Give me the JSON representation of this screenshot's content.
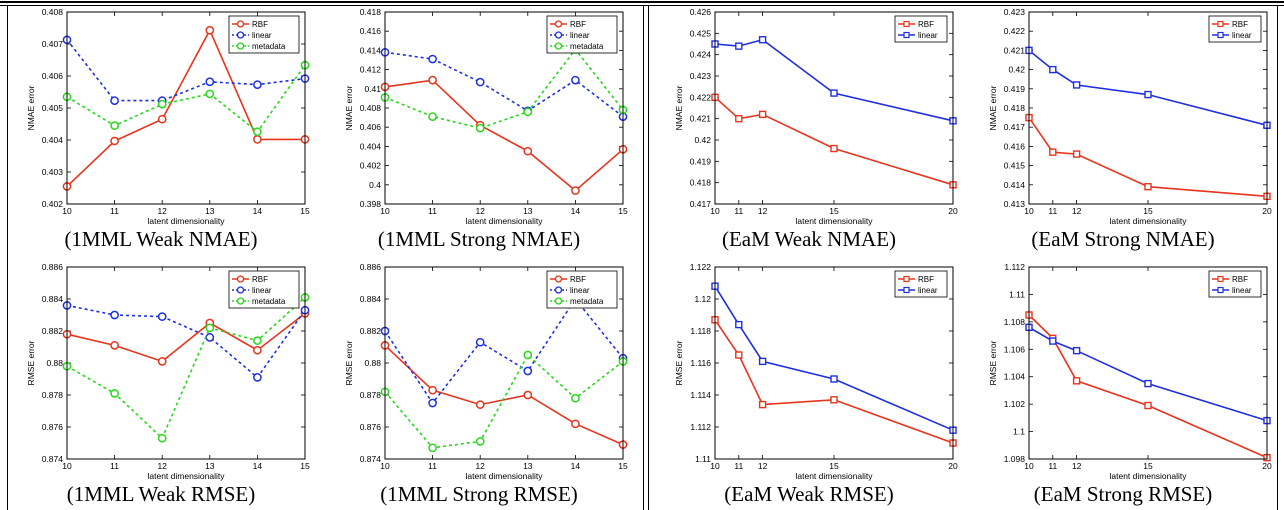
{
  "colors": {
    "rbf": "#e8341c",
    "linear": "#1f2fe0",
    "metadata": "#27d81a",
    "axis": "#000000"
  },
  "chart_data": [
    {
      "type": "line",
      "caption": "(1MML Weak NMAE)",
      "xlabel": "latent dimensionality",
      "ylabel": "NMAE error",
      "xlim": [
        10,
        15
      ],
      "ylim": [
        0.402,
        0.408
      ],
      "xticks": [
        10,
        11,
        12,
        13,
        14,
        15
      ],
      "yticks": [
        0.402,
        0.403,
        0.404,
        0.405,
        0.406,
        0.407,
        0.408
      ],
      "ytick_labels": [
        "0.402",
        "0.403",
        "0.404",
        "0.405",
        "0.406",
        "0.407",
        "0.408"
      ],
      "marker": "circle",
      "legend": "top-right",
      "x": [
        10,
        11,
        12,
        13,
        14,
        15
      ],
      "series": [
        {
          "name": "RBF",
          "color": "rbf",
          "dashed": false,
          "values": [
            0.40255,
            0.40397,
            0.40465,
            0.40743,
            0.40402,
            0.40402
          ]
        },
        {
          "name": "linear",
          "color": "linear",
          "dashed": true,
          "values": [
            0.40713,
            0.40523,
            0.40523,
            0.40582,
            0.40573,
            0.40592
          ]
        },
        {
          "name": "metadata",
          "color": "metadata",
          "dashed": true,
          "values": [
            0.40535,
            0.40445,
            0.40512,
            0.40544,
            0.40426,
            0.40634
          ]
        }
      ]
    },
    {
      "type": "line",
      "caption": "(1MML Strong NMAE)",
      "xlabel": "latent dimensionality",
      "ylabel": "NMAE error",
      "xlim": [
        10,
        15
      ],
      "ylim": [
        0.398,
        0.418
      ],
      "xticks": [
        10,
        11,
        12,
        13,
        14,
        15
      ],
      "yticks": [
        0.398,
        0.4,
        0.402,
        0.404,
        0.406,
        0.408,
        0.41,
        0.412,
        0.414,
        0.416,
        0.418
      ],
      "ytick_labels": [
        "0.398",
        "0.4",
        "0.402",
        "0.404",
        "0.406",
        "0.408",
        "0.41",
        "0.412",
        "0.414",
        "0.416",
        "0.418"
      ],
      "marker": "circle",
      "legend": "top-right",
      "x": [
        10,
        11,
        12,
        13,
        14,
        15
      ],
      "series": [
        {
          "name": "RBF",
          "color": "rbf",
          "dashed": false,
          "values": [
            0.4102,
            0.4109,
            0.4062,
            0.4035,
            0.3994,
            0.4037
          ]
        },
        {
          "name": "linear",
          "color": "linear",
          "dashed": true,
          "values": [
            0.4138,
            0.4131,
            0.4107,
            0.4077,
            0.4109,
            0.4071
          ]
        },
        {
          "name": "metadata",
          "color": "metadata",
          "dashed": true,
          "values": [
            0.4091,
            0.4071,
            0.4059,
            0.4076,
            0.4141,
            0.4078
          ]
        }
      ]
    },
    {
      "type": "line",
      "caption": "(EaM Weak NMAE)",
      "xlabel": "latent dimensionality",
      "ylabel": "NMAE error",
      "xlim": [
        10,
        20
      ],
      "ylim": [
        0.417,
        0.426
      ],
      "xticks": [
        10,
        11,
        12,
        15,
        20
      ],
      "yticks": [
        0.417,
        0.418,
        0.419,
        0.42,
        0.421,
        0.422,
        0.423,
        0.424,
        0.425,
        0.426
      ],
      "ytick_labels": [
        "0.417",
        "0.418",
        "0.419",
        "0.42",
        "0.421",
        "0.422",
        "0.423",
        "0.424",
        "0.425",
        "0.426"
      ],
      "marker": "square",
      "legend": "top-right",
      "x": [
        10,
        11,
        12,
        15,
        20
      ],
      "series": [
        {
          "name": "RBF",
          "color": "rbf",
          "dashed": false,
          "values": [
            0.422,
            0.421,
            0.4212,
            0.4196,
            0.4179
          ]
        },
        {
          "name": "linear",
          "color": "linear",
          "dashed": false,
          "values": [
            0.4245,
            0.4244,
            0.4247,
            0.4222,
            0.4209
          ]
        }
      ]
    },
    {
      "type": "line",
      "caption": "(EaM Strong NMAE)",
      "xlabel": "latent dimensionality",
      "ylabel": "NMAE error",
      "xlim": [
        10,
        20
      ],
      "ylim": [
        0.413,
        0.423
      ],
      "xticks": [
        10,
        11,
        12,
        15,
        20
      ],
      "yticks": [
        0.413,
        0.414,
        0.415,
        0.416,
        0.417,
        0.418,
        0.419,
        0.42,
        0.421,
        0.422,
        0.423
      ],
      "ytick_labels": [
        "0.413",
        "0.414",
        "0.415",
        "0.416",
        "0.417",
        "0.418",
        "0.419",
        "0.42",
        "0.421",
        "0.422",
        "0.423"
      ],
      "marker": "square",
      "legend": "top-right",
      "x": [
        10,
        11,
        12,
        15,
        20
      ],
      "series": [
        {
          "name": "RBF",
          "color": "rbf",
          "dashed": false,
          "values": [
            0.4175,
            0.4157,
            0.4156,
            0.4139,
            0.4134
          ]
        },
        {
          "name": "linear",
          "color": "linear",
          "dashed": false,
          "values": [
            0.421,
            0.42,
            0.4192,
            0.4187,
            0.4171
          ]
        }
      ]
    },
    {
      "type": "line",
      "caption": "(1MML Weak RMSE)",
      "xlabel": "latent dimensionality",
      "ylabel": "RMSE error",
      "xlim": [
        10,
        15
      ],
      "ylim": [
        0.874,
        0.886
      ],
      "xticks": [
        10,
        11,
        12,
        13,
        14,
        15
      ],
      "yticks": [
        0.874,
        0.876,
        0.878,
        0.88,
        0.882,
        0.884,
        0.886
      ],
      "ytick_labels": [
        "0.874",
        "0.876",
        "0.878",
        "0.88",
        "0.882",
        "0.884",
        "0.886"
      ],
      "marker": "circle",
      "legend": "top-right",
      "x": [
        10,
        11,
        12,
        13,
        14,
        15
      ],
      "series": [
        {
          "name": "RBF",
          "color": "rbf",
          "dashed": false,
          "values": [
            0.8818,
            0.8811,
            0.8801,
            0.8825,
            0.8808,
            0.8831
          ]
        },
        {
          "name": "linear",
          "color": "linear",
          "dashed": true,
          "values": [
            0.8836,
            0.883,
            0.8829,
            0.8816,
            0.8791,
            0.8833
          ]
        },
        {
          "name": "metadata",
          "color": "metadata",
          "dashed": true,
          "values": [
            0.8798,
            0.8781,
            0.8753,
            0.8822,
            0.8814,
            0.8841
          ]
        }
      ]
    },
    {
      "type": "line",
      "caption": "(1MML Strong RMSE)",
      "xlabel": "latent dimensionality",
      "ylabel": "RMSE error",
      "xlim": [
        10,
        15
      ],
      "ylim": [
        0.874,
        0.886
      ],
      "xticks": [
        10,
        11,
        12,
        13,
        14,
        15
      ],
      "yticks": [
        0.874,
        0.876,
        0.878,
        0.88,
        0.882,
        0.884,
        0.886
      ],
      "ytick_labels": [
        "0.874",
        "0.876",
        "0.878",
        "0.88",
        "0.882",
        "0.884",
        "0.886"
      ],
      "marker": "circle",
      "legend": "top-right",
      "x": [
        10,
        11,
        12,
        13,
        14,
        15
      ],
      "series": [
        {
          "name": "RBF",
          "color": "rbf",
          "dashed": false,
          "values": [
            0.8811,
            0.8783,
            0.8774,
            0.878,
            0.8762,
            0.8749
          ]
        },
        {
          "name": "linear",
          "color": "linear",
          "dashed": true,
          "values": [
            0.882,
            0.8775,
            0.8813,
            0.8795,
            0.884,
            0.8803
          ]
        },
        {
          "name": "metadata",
          "color": "metadata",
          "dashed": true,
          "values": [
            0.8782,
            0.8747,
            0.8751,
            0.8805,
            0.8778,
            0.8801
          ]
        }
      ]
    },
    {
      "type": "line",
      "caption": "(EaM Weak RMSE)",
      "xlabel": "latent dimensionality",
      "ylabel": "RMSE error",
      "xlim": [
        10,
        20
      ],
      "ylim": [
        1.11,
        1.122
      ],
      "xticks": [
        10,
        11,
        12,
        15,
        20
      ],
      "yticks": [
        1.11,
        1.112,
        1.114,
        1.116,
        1.118,
        1.12,
        1.122
      ],
      "ytick_labels": [
        "1.11",
        "1.112",
        "1.114",
        "1.116",
        "1.118",
        "1.12",
        "1.122"
      ],
      "marker": "square",
      "legend": "top-right",
      "x": [
        10,
        11,
        12,
        15,
        20
      ],
      "series": [
        {
          "name": "RBF",
          "color": "rbf",
          "dashed": false,
          "values": [
            1.1187,
            1.1165,
            1.1134,
            1.1137,
            1.111
          ]
        },
        {
          "name": "linear",
          "color": "linear",
          "dashed": false,
          "values": [
            1.1208,
            1.1184,
            1.1161,
            1.115,
            1.1118
          ]
        }
      ]
    },
    {
      "type": "line",
      "caption": "(EaM Strong RMSE)",
      "xlabel": "latent dimensionality",
      "ylabel": "RMSE error",
      "xlim": [
        10,
        20
      ],
      "ylim": [
        1.098,
        1.112
      ],
      "xticks": [
        10,
        11,
        12,
        15,
        20
      ],
      "yticks": [
        1.098,
        1.1,
        1.102,
        1.104,
        1.106,
        1.108,
        1.11,
        1.112
      ],
      "ytick_labels": [
        "1.098",
        "1.1",
        "1.102",
        "1.104",
        "1.106",
        "1.108",
        "1.11",
        "1.112"
      ],
      "marker": "square",
      "legend": "top-right",
      "x": [
        10,
        11,
        12,
        15,
        20
      ],
      "series": [
        {
          "name": "RBF",
          "color": "rbf",
          "dashed": false,
          "values": [
            1.1085,
            1.1068,
            1.1037,
            1.1019,
            1.0981
          ]
        },
        {
          "name": "linear",
          "color": "linear",
          "dashed": false,
          "values": [
            1.1076,
            1.1066,
            1.1059,
            1.1035,
            1.1008
          ]
        }
      ]
    }
  ]
}
